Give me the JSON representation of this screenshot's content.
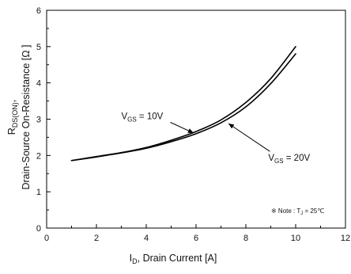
{
  "chart_data": {
    "type": "line",
    "xlabel": {
      "main": "I",
      "sub": "D",
      "rest": ", Drain Current [A]"
    },
    "ylabel": {
      "line1_main": "R",
      "line1_sub": "DS(ON)",
      "line1_rest": ",",
      "line2": "Drain-Source On-Resistance [Ω ]"
    },
    "xlim": [
      0,
      12
    ],
    "ylim": [
      0,
      6
    ],
    "xticks": [
      0,
      2,
      4,
      6,
      8,
      10,
      12
    ],
    "yticks": [
      0,
      1,
      2,
      3,
      4,
      5,
      6
    ],
    "grid": false,
    "series": [
      {
        "name": "VGS = 10V",
        "color": "#000000",
        "x": [
          1.0,
          2.0,
          3.0,
          4.0,
          5.0,
          6.0,
          7.0,
          8.0,
          9.0,
          10.0
        ],
        "y": [
          1.86,
          1.97,
          2.08,
          2.22,
          2.42,
          2.66,
          2.98,
          3.46,
          4.12,
          5.0
        ]
      },
      {
        "name": "VGS = 20V",
        "color": "#000000",
        "x": [
          1.0,
          2.0,
          3.0,
          4.0,
          5.0,
          6.0,
          7.0,
          8.0,
          9.0,
          10.0
        ],
        "y": [
          1.86,
          1.96,
          2.07,
          2.2,
          2.38,
          2.6,
          2.9,
          3.34,
          3.98,
          4.8
        ]
      }
    ],
    "annotations": [
      {
        "main": "V",
        "sub": "GS",
        "rest": " = 10V",
        "x": 3.0,
        "y": 3.0,
        "arrow_to": [
          5.9,
          2.62
        ]
      },
      {
        "main": "V",
        "sub": "GS",
        "rest": " = 20V",
        "x": 8.9,
        "y": 1.85,
        "arrow_to": [
          7.3,
          2.88
        ]
      }
    ],
    "note": {
      "text": "※ Note : T",
      "sub": "J",
      "rest": " = 25℃"
    }
  }
}
